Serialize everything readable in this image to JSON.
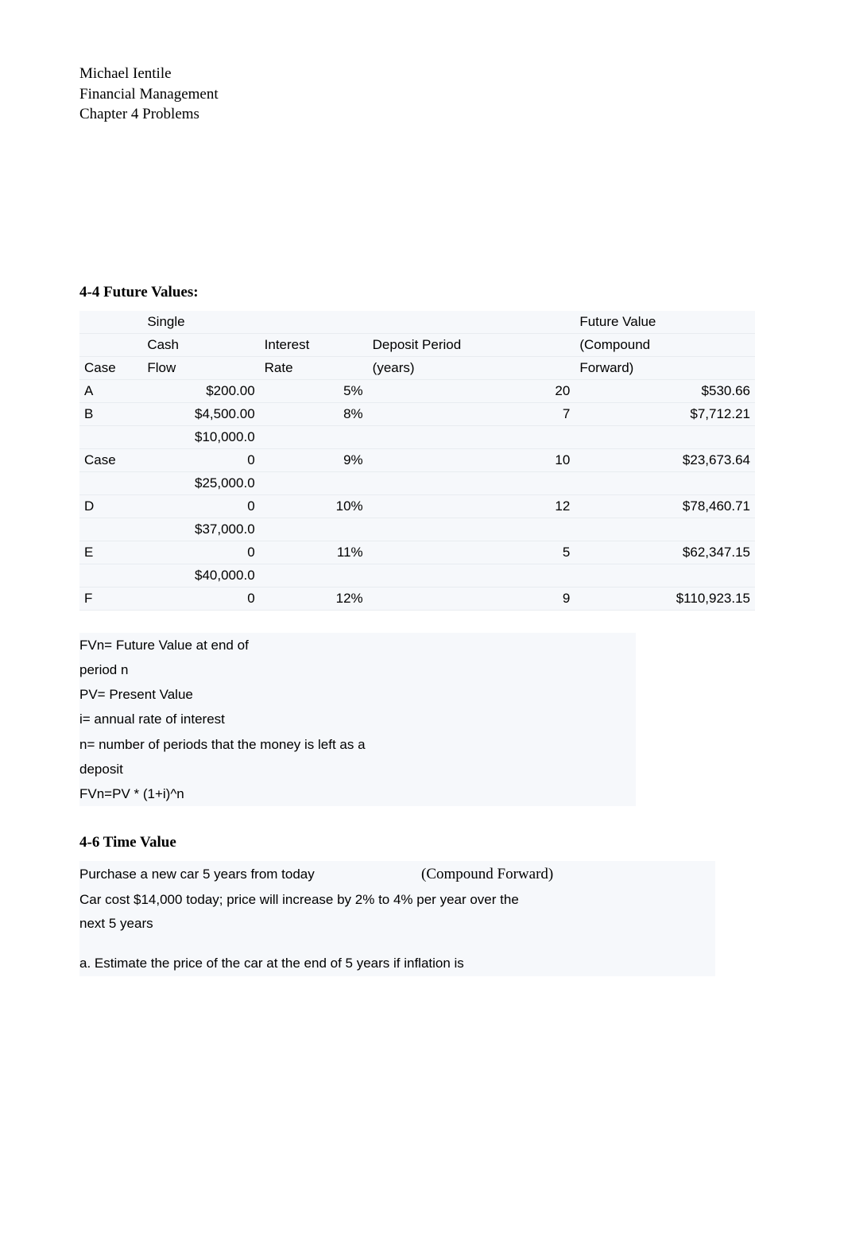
{
  "header": {
    "author": "Michael Ientile",
    "course": "Financial Management",
    "chapter": "Chapter 4 Problems"
  },
  "section1": {
    "title": "4-4 Future Values:",
    "columns": {
      "case": "Case",
      "scf_l1": "Single",
      "scf_l2": "Cash",
      "scf_l3": "Flow",
      "rate_l1": "Interest",
      "rate_l2": "Rate",
      "dep_l1": "Deposit Period",
      "dep_l2": "(years)",
      "fv_l1": "Future Value",
      "fv_l2": "(Compound",
      "fv_l3": "Forward)"
    },
    "rows": [
      {
        "case": "A",
        "scf": "$200.00",
        "rate": "5%",
        "dep": "20",
        "fv": "$530.66"
      },
      {
        "case": "B",
        "scf": "$4,500.00",
        "rate": "8%",
        "dep": "7",
        "fv": "$7,712.21"
      },
      {
        "case": "Case",
        "scf_top": "$10,000.0",
        "scf": "0",
        "rate": "9%",
        "dep": "10",
        "fv": "$23,673.64"
      },
      {
        "case": "D",
        "scf_top": "$25,000.0",
        "scf": "0",
        "rate": "10%",
        "dep": "12",
        "fv": "$78,460.71"
      },
      {
        "case": "E",
        "scf_top": "$37,000.0",
        "scf": "0",
        "rate": "11%",
        "dep": "5",
        "fv": "$62,347.15"
      },
      {
        "case": "F",
        "scf_top": "$40,000.0",
        "scf": "0",
        "rate": "12%",
        "dep": "9",
        "fv": "$110,923.15"
      }
    ],
    "notes": [
      "FVn= Future Value at end of",
      "period n",
      "PV= Present Value",
      "i= annual rate of interest",
      "n= number of periods that the money is left as a",
      "deposit",
      "FVn=PV * (1+i)^n"
    ]
  },
  "section2": {
    "title": "4-6 Time Value",
    "line1_left": "Purchase a new car 5 years from today",
    "line1_right": "(Compound Forward)",
    "line2": "Car cost $14,000 today; price will increase by 2% to 4% per year over the",
    "line3": "next 5 years",
    "lineA": "a. Estimate the price of the car at the end of 5 years if inflation is"
  },
  "colors": {
    "shaded_bg": "#f6f8fb",
    "row_border": "#e8ecf0",
    "text": "#000000",
    "page_bg": "#ffffff"
  }
}
